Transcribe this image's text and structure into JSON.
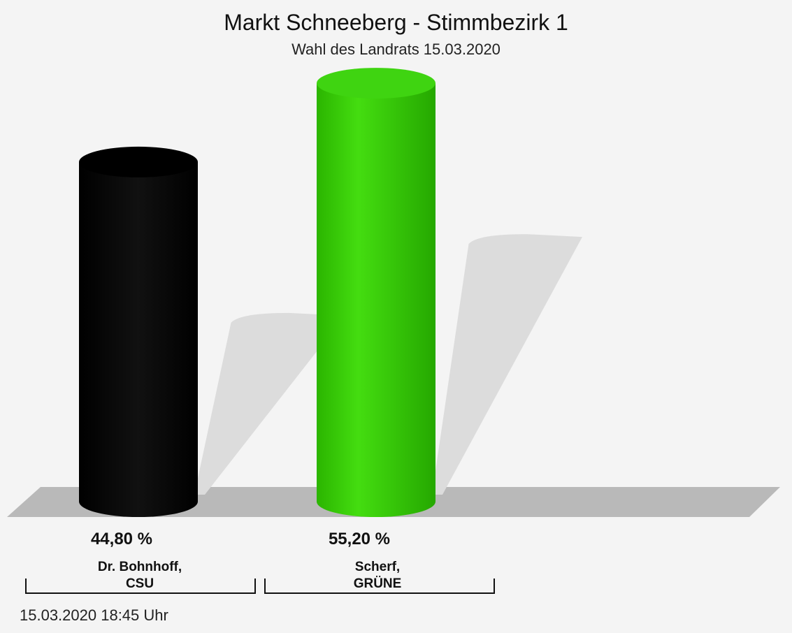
{
  "chart_data": {
    "type": "bar",
    "title": "Markt Schneeberg - Stimmbezirk 1",
    "subtitle": "Wahl des Landrats 15.03.2020",
    "categories": [
      {
        "name": "Dr. Bohnhoff,",
        "party": "CSU",
        "value": 44.8,
        "label": "44,80 %",
        "color": "#000000"
      },
      {
        "name": "Scherf,",
        "party": "GRÜNE",
        "value": 55.2,
        "label": "55,20 %",
        "color": "#33cc00"
      }
    ],
    "ylim": [
      0,
      60
    ],
    "grid": false,
    "legend": "none"
  },
  "footer": {
    "timestamp": "15.03.2020 18:45 Uhr"
  }
}
